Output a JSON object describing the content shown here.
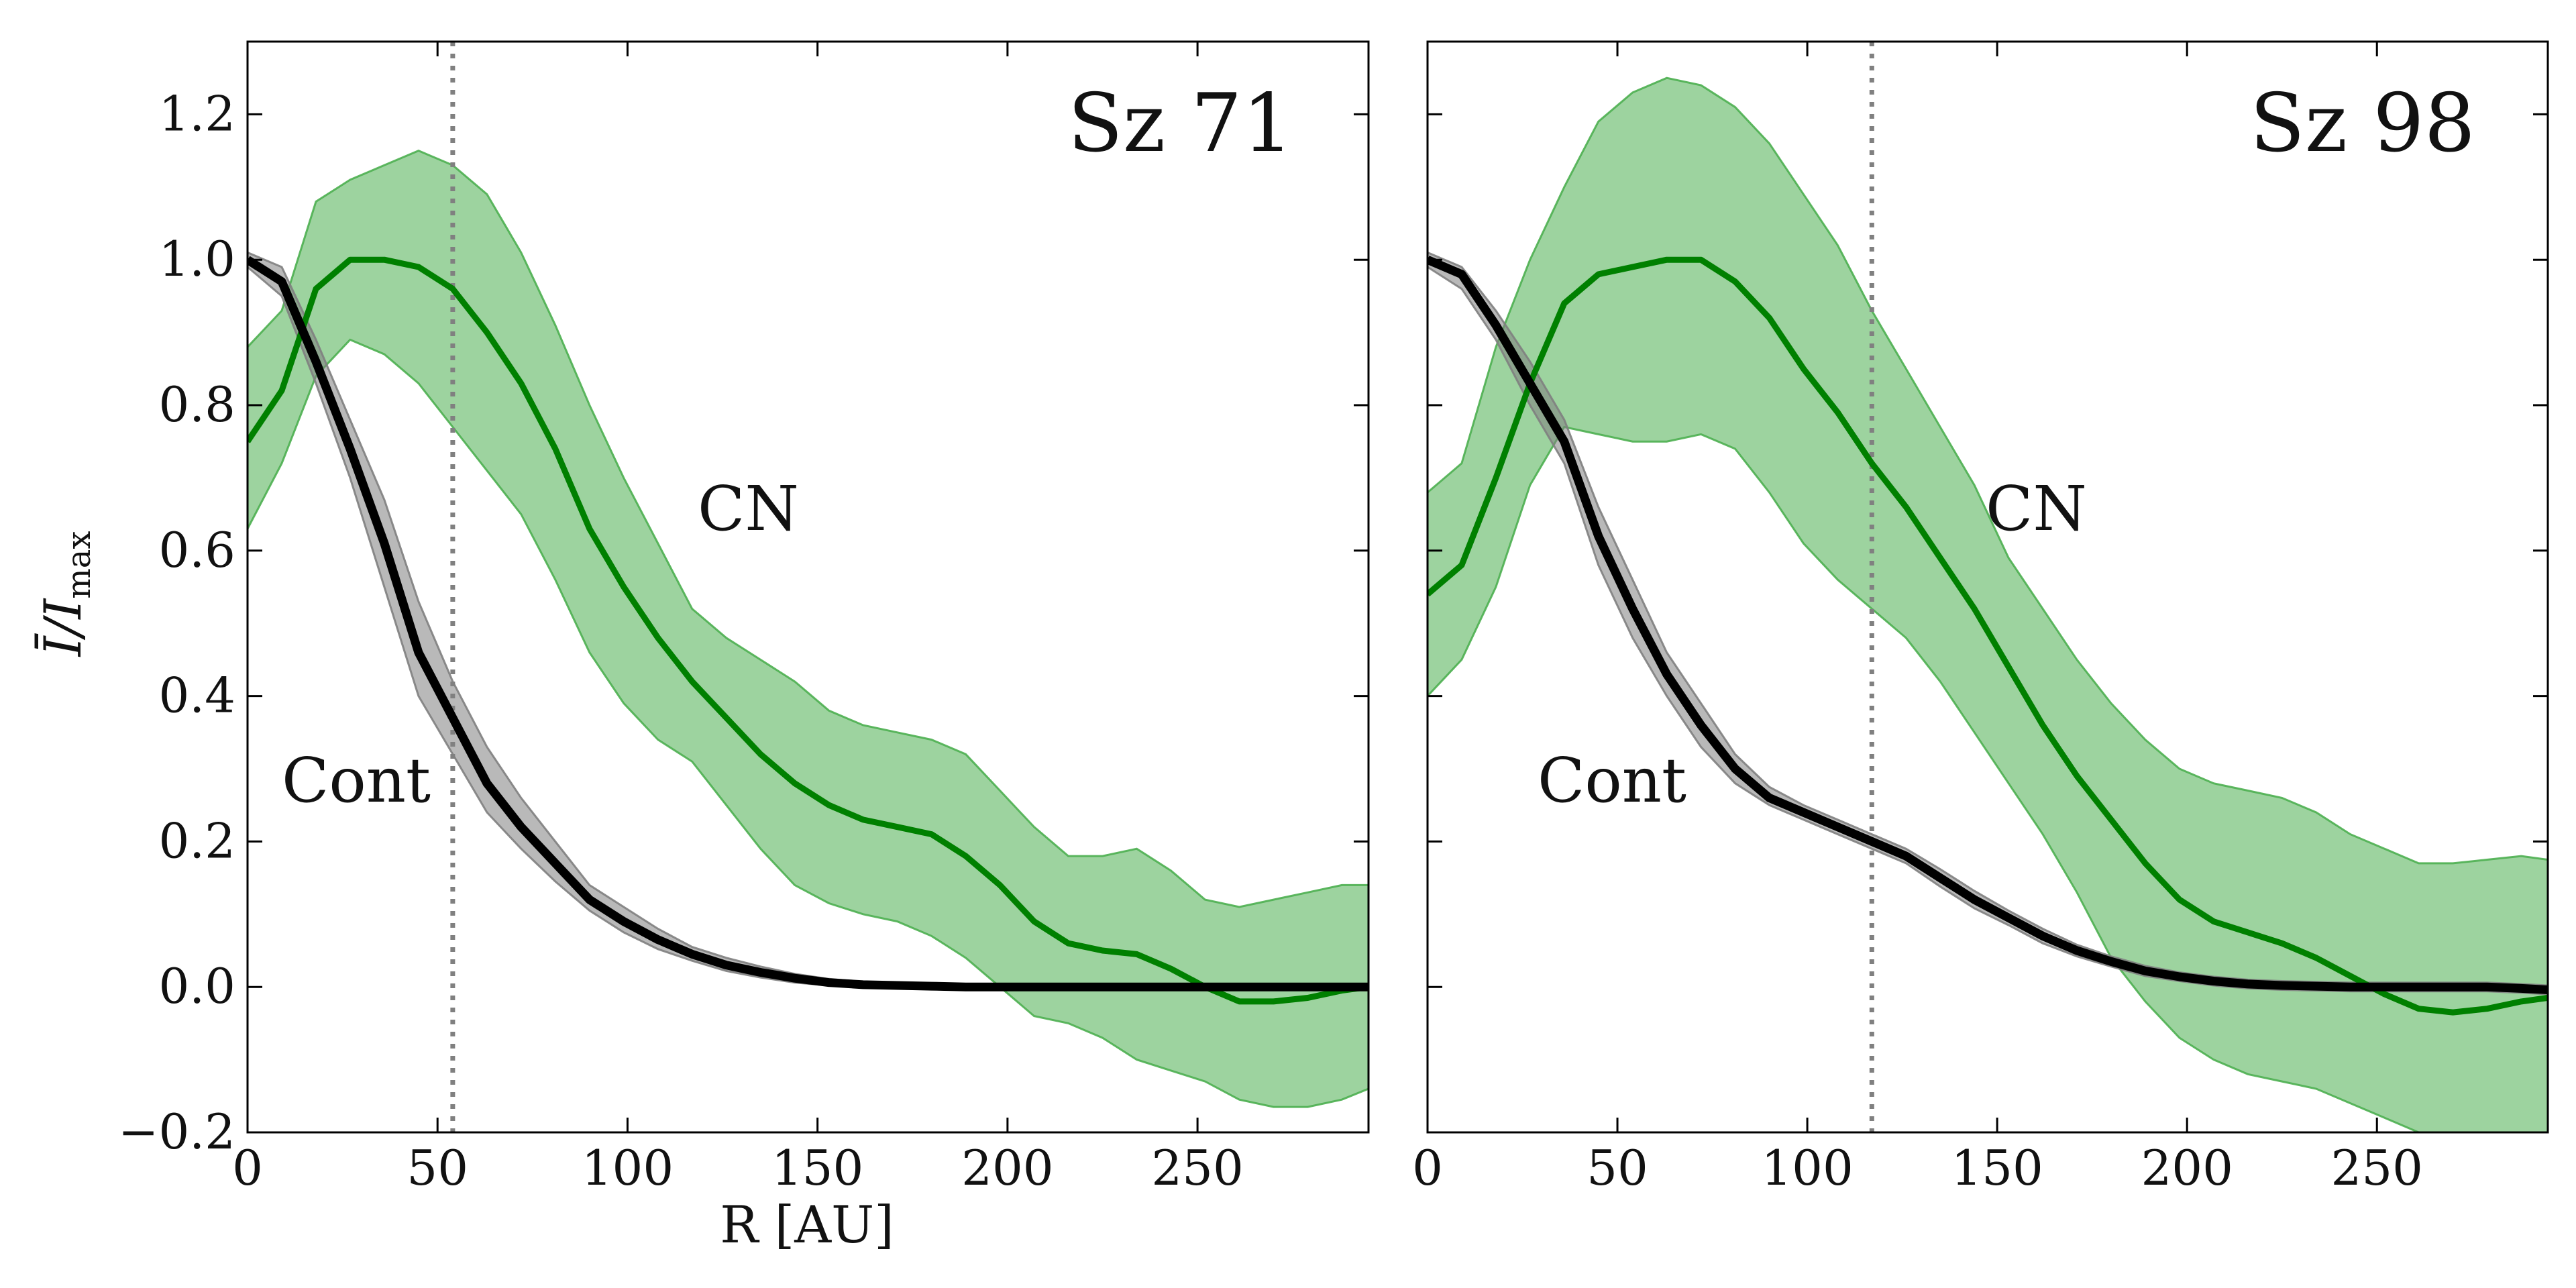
{
  "chart_data": [
    {
      "type": "line",
      "title": "Sz 71",
      "xlabel": "R [AU]",
      "ylabel": "Ī/I_max",
      "ylabel_parts": {
        "main": "Ī/I",
        "sub": "max"
      },
      "xlim": [
        0,
        295
      ],
      "ylim": [
        -0.2,
        1.3
      ],
      "xticks": [
        0,
        50,
        100,
        150,
        200,
        250
      ],
      "yticks": [
        -0.2,
        0.0,
        0.2,
        0.4,
        0.6,
        0.8,
        1.0,
        1.2
      ],
      "xtick_labels": [
        "0",
        "50",
        "100",
        "150",
        "200",
        "250"
      ],
      "ytick_labels": [
        "−0.2",
        "0.0",
        "0.2",
        "0.4",
        "0.6",
        "0.8",
        "1.0",
        "1.2"
      ],
      "grid": false,
      "vline": {
        "x": 54,
        "style": "dotted",
        "color": "#808080"
      },
      "annotations": [
        {
          "text": "CN",
          "x": 120,
          "y": 0.62
        },
        {
          "text": "Cont",
          "x": 9,
          "y": 0.26
        }
      ],
      "series": [
        {
          "name": "CN",
          "color": "#008000",
          "band_color": "#4caf50",
          "x": [
            0,
            9,
            18,
            27,
            36,
            45,
            54,
            63,
            72,
            81,
            90,
            99,
            108,
            117,
            126,
            135,
            144,
            153,
            162,
            171,
            180,
            189,
            198,
            207,
            216,
            225,
            234,
            243,
            252,
            261,
            270,
            279,
            288,
            295
          ],
          "y": [
            0.75,
            0.82,
            0.96,
            1.0,
            1.0,
            0.99,
            0.96,
            0.9,
            0.83,
            0.74,
            0.63,
            0.55,
            0.48,
            0.42,
            0.37,
            0.32,
            0.28,
            0.25,
            0.23,
            0.22,
            0.21,
            0.18,
            0.14,
            0.09,
            0.06,
            0.05,
            0.045,
            0.025,
            0.0,
            -0.02,
            -0.02,
            -0.015,
            -0.005,
            0.0
          ],
          "upper": [
            0.88,
            0.93,
            1.08,
            1.11,
            1.13,
            1.15,
            1.13,
            1.09,
            1.01,
            0.91,
            0.8,
            0.7,
            0.61,
            0.52,
            0.48,
            0.45,
            0.42,
            0.38,
            0.36,
            0.35,
            0.34,
            0.32,
            0.27,
            0.22,
            0.18,
            0.18,
            0.19,
            0.16,
            0.12,
            0.11,
            0.12,
            0.13,
            0.14,
            0.14
          ],
          "lower": [
            0.63,
            0.72,
            0.84,
            0.89,
            0.87,
            0.83,
            0.77,
            0.71,
            0.65,
            0.56,
            0.46,
            0.39,
            0.34,
            0.31,
            0.25,
            0.19,
            0.14,
            0.115,
            0.1,
            0.09,
            0.07,
            0.04,
            0.0,
            -0.04,
            -0.05,
            -0.07,
            -0.1,
            -0.115,
            -0.13,
            -0.155,
            -0.165,
            -0.165,
            -0.155,
            -0.14
          ]
        },
        {
          "name": "Cont",
          "color": "#000000",
          "band_color": "#808080",
          "x": [
            0,
            9,
            18,
            27,
            36,
            45,
            54,
            63,
            72,
            81,
            90,
            99,
            108,
            117,
            126,
            135,
            144,
            153,
            162,
            171,
            180,
            189,
            198,
            207,
            216,
            225,
            234,
            243,
            252,
            261,
            270,
            279,
            288,
            295
          ],
          "y": [
            1.0,
            0.97,
            0.86,
            0.74,
            0.61,
            0.46,
            0.37,
            0.28,
            0.22,
            0.17,
            0.12,
            0.09,
            0.065,
            0.045,
            0.03,
            0.02,
            0.012,
            0.006,
            0.003,
            0.002,
            0.001,
            0.0,
            0.0,
            0.0,
            0.0,
            0.0,
            0.0,
            0.0,
            0.0,
            0.0,
            0.0,
            0.0,
            0.0,
            0.0
          ],
          "upper": [
            1.01,
            0.99,
            0.89,
            0.78,
            0.67,
            0.53,
            0.42,
            0.33,
            0.26,
            0.2,
            0.14,
            0.11,
            0.08,
            0.055,
            0.04,
            0.028,
            0.018,
            0.011,
            0.007,
            0.005,
            0.004,
            0.003,
            0.003,
            0.003,
            0.003,
            0.003,
            0.003,
            0.003,
            0.003,
            0.003,
            0.003,
            0.003,
            0.003,
            0.003
          ],
          "lower": [
            0.99,
            0.95,
            0.83,
            0.7,
            0.55,
            0.4,
            0.32,
            0.24,
            0.19,
            0.145,
            0.105,
            0.075,
            0.052,
            0.036,
            0.022,
            0.013,
            0.006,
            0.002,
            -0.001,
            -0.002,
            -0.003,
            -0.003,
            -0.003,
            -0.003,
            -0.003,
            -0.003,
            -0.003,
            -0.003,
            -0.003,
            -0.003,
            -0.003,
            -0.003,
            -0.003,
            -0.003
          ]
        }
      ]
    },
    {
      "type": "line",
      "title": "Sz 98",
      "xlabel": "",
      "ylabel": "",
      "xlim": [
        0,
        295
      ],
      "ylim": [
        -0.2,
        1.3
      ],
      "xticks": [
        0,
        50,
        100,
        150,
        200,
        250
      ],
      "yticks": [
        -0.2,
        0.0,
        0.2,
        0.4,
        0.6,
        0.8,
        1.0,
        1.2
      ],
      "xtick_labels": [
        "0",
        "50",
        "100",
        "150",
        "200",
        "250"
      ],
      "ytick_labels": [],
      "grid": false,
      "vline": {
        "x": 117,
        "style": "dotted",
        "color": "#808080"
      },
      "annotations": [
        {
          "text": "CN",
          "x": 147,
          "y": 0.62
        },
        {
          "text": "Cont",
          "x": 29,
          "y": 0.26
        }
      ],
      "series": [
        {
          "name": "CN",
          "color": "#008000",
          "band_color": "#4caf50",
          "x": [
            0,
            9,
            18,
            27,
            36,
            45,
            54,
            63,
            72,
            81,
            90,
            99,
            108,
            117,
            126,
            135,
            144,
            153,
            162,
            171,
            180,
            189,
            198,
            207,
            216,
            225,
            234,
            243,
            252,
            261,
            270,
            279,
            288,
            295
          ],
          "y": [
            0.54,
            0.58,
            0.7,
            0.83,
            0.94,
            0.98,
            0.99,
            1.0,
            1.0,
            0.97,
            0.92,
            0.85,
            0.79,
            0.72,
            0.66,
            0.59,
            0.52,
            0.44,
            0.36,
            0.29,
            0.23,
            0.17,
            0.12,
            0.09,
            0.075,
            0.06,
            0.04,
            0.015,
            -0.01,
            -0.03,
            -0.035,
            -0.03,
            -0.02,
            -0.015
          ],
          "upper": [
            0.68,
            0.72,
            0.88,
            1.0,
            1.1,
            1.19,
            1.23,
            1.25,
            1.24,
            1.21,
            1.16,
            1.09,
            1.02,
            0.93,
            0.85,
            0.77,
            0.69,
            0.59,
            0.52,
            0.45,
            0.39,
            0.34,
            0.3,
            0.28,
            0.27,
            0.26,
            0.24,
            0.21,
            0.19,
            0.17,
            0.17,
            0.175,
            0.18,
            0.175
          ],
          "lower": [
            0.4,
            0.45,
            0.55,
            0.69,
            0.77,
            0.76,
            0.75,
            0.75,
            0.76,
            0.74,
            0.68,
            0.61,
            0.56,
            0.52,
            0.48,
            0.42,
            0.35,
            0.28,
            0.21,
            0.13,
            0.04,
            -0.02,
            -0.07,
            -0.1,
            -0.12,
            -0.13,
            -0.14,
            -0.16,
            -0.18,
            -0.2,
            -0.21,
            -0.22,
            -0.23,
            -0.23
          ]
        },
        {
          "name": "Cont",
          "color": "#000000",
          "band_color": "#808080",
          "x": [
            0,
            9,
            18,
            27,
            36,
            45,
            54,
            63,
            72,
            81,
            90,
            99,
            108,
            117,
            126,
            135,
            144,
            153,
            162,
            171,
            180,
            189,
            198,
            207,
            216,
            225,
            234,
            243,
            252,
            261,
            270,
            279,
            288,
            295
          ],
          "y": [
            1.0,
            0.98,
            0.91,
            0.83,
            0.75,
            0.62,
            0.52,
            0.43,
            0.36,
            0.3,
            0.26,
            0.24,
            0.22,
            0.2,
            0.18,
            0.15,
            0.12,
            0.095,
            0.07,
            0.05,
            0.035,
            0.022,
            0.014,
            0.008,
            0.004,
            0.002,
            0.001,
            0.0,
            0.0,
            0.0,
            0.0,
            0.0,
            -0.002,
            -0.004
          ],
          "upper": [
            1.01,
            0.99,
            0.93,
            0.86,
            0.78,
            0.66,
            0.56,
            0.46,
            0.39,
            0.32,
            0.275,
            0.25,
            0.23,
            0.21,
            0.19,
            0.162,
            0.132,
            0.105,
            0.08,
            0.058,
            0.042,
            0.029,
            0.02,
            0.014,
            0.01,
            0.008,
            0.007,
            0.006,
            0.006,
            0.006,
            0.006,
            0.006,
            0.004,
            0.002
          ],
          "lower": [
            0.99,
            0.96,
            0.89,
            0.8,
            0.72,
            0.58,
            0.48,
            0.4,
            0.33,
            0.28,
            0.25,
            0.23,
            0.21,
            0.19,
            0.17,
            0.138,
            0.108,
            0.085,
            0.06,
            0.042,
            0.028,
            0.015,
            0.008,
            0.002,
            -0.002,
            -0.004,
            -0.005,
            -0.006,
            -0.006,
            -0.006,
            -0.006,
            -0.006,
            -0.008,
            -0.01
          ]
        }
      ]
    }
  ]
}
